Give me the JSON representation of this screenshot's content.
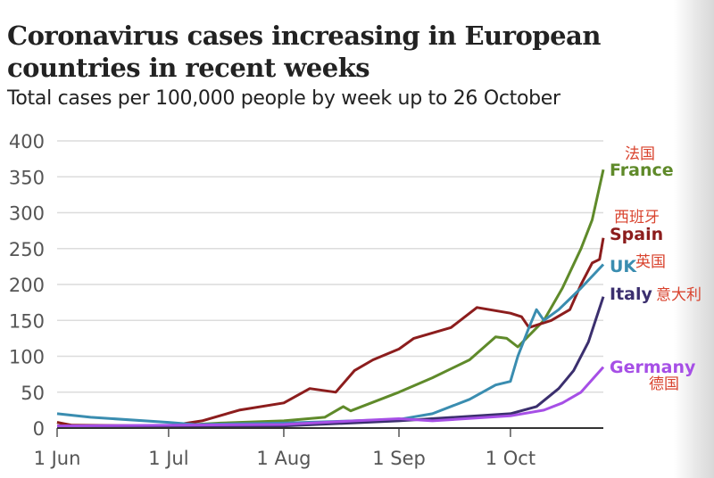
{
  "title": "Coronavirus cases increasing in European countries in recent weeks",
  "subtitle": "Total cases per 100,000 people by week up to 26 October",
  "chart_data": {
    "type": "line",
    "title": "Coronavirus cases increasing in European countries in recent weeks",
    "subtitle": "Total cases per 100,000 people by week up to 26 October",
    "xlabel": "",
    "ylabel": "",
    "xlim": [
      "2020-06-01",
      "2020-10-26"
    ],
    "ylim": [
      0,
      400
    ],
    "yticks": [
      0,
      50,
      100,
      150,
      200,
      250,
      300,
      350,
      400
    ],
    "xticks": [
      {
        "date": "2020-06-01",
        "label": "1 Jun"
      },
      {
        "date": "2020-07-01",
        "label": "1 Jul"
      },
      {
        "date": "2020-08-01",
        "label": "1 Aug"
      },
      {
        "date": "2020-09-01",
        "label": "1 Sep"
      },
      {
        "date": "2020-10-01",
        "label": "1 Oct"
      }
    ],
    "grid": true,
    "legend": "direct labels at line ends",
    "series": [
      {
        "name": "France",
        "label_cn": "法国",
        "color": "#5f8a2a",
        "points": [
          [
            "2020-06-01",
            8
          ],
          [
            "2020-06-05",
            3
          ],
          [
            "2020-07-01",
            3
          ],
          [
            "2020-07-15",
            7
          ],
          [
            "2020-08-01",
            10
          ],
          [
            "2020-08-12",
            15
          ],
          [
            "2020-08-17",
            30
          ],
          [
            "2020-08-19",
            24
          ],
          [
            "2020-09-01",
            50
          ],
          [
            "2020-09-10",
            70
          ],
          [
            "2020-09-20",
            95
          ],
          [
            "2020-09-27",
            127
          ],
          [
            "2020-09-30",
            125
          ],
          [
            "2020-10-03",
            113
          ],
          [
            "2020-10-10",
            150
          ],
          [
            "2020-10-15",
            195
          ],
          [
            "2020-10-20",
            250
          ],
          [
            "2020-10-23",
            290
          ],
          [
            "2020-10-26",
            360
          ]
        ]
      },
      {
        "name": "Spain",
        "label_cn": "西班牙",
        "color": "#8c1d1d",
        "points": [
          [
            "2020-06-01",
            8
          ],
          [
            "2020-06-05",
            4
          ],
          [
            "2020-07-01",
            3
          ],
          [
            "2020-07-10",
            10
          ],
          [
            "2020-07-20",
            25
          ],
          [
            "2020-08-01",
            35
          ],
          [
            "2020-08-08",
            55
          ],
          [
            "2020-08-15",
            50
          ],
          [
            "2020-08-20",
            80
          ],
          [
            "2020-08-25",
            95
          ],
          [
            "2020-09-01",
            110
          ],
          [
            "2020-09-05",
            125
          ],
          [
            "2020-09-15",
            140
          ],
          [
            "2020-09-22",
            168
          ],
          [
            "2020-10-01",
            160
          ],
          [
            "2020-10-04",
            155
          ],
          [
            "2020-10-06",
            140
          ],
          [
            "2020-10-12",
            150
          ],
          [
            "2020-10-17",
            165
          ],
          [
            "2020-10-20",
            200
          ],
          [
            "2020-10-23",
            230
          ],
          [
            "2020-10-25",
            235
          ],
          [
            "2020-10-26",
            265
          ]
        ]
      },
      {
        "name": "UK",
        "label_cn": "英国",
        "color": "#3a8db0",
        "points": [
          [
            "2020-06-01",
            20
          ],
          [
            "2020-06-10",
            15
          ],
          [
            "2020-07-01",
            8
          ],
          [
            "2020-07-08",
            5
          ],
          [
            "2020-08-01",
            7
          ],
          [
            "2020-09-01",
            12
          ],
          [
            "2020-09-10",
            20
          ],
          [
            "2020-09-20",
            40
          ],
          [
            "2020-09-27",
            60
          ],
          [
            "2020-10-01",
            65
          ],
          [
            "2020-10-03",
            100
          ],
          [
            "2020-10-06",
            140
          ],
          [
            "2020-10-08",
            165
          ],
          [
            "2020-10-10",
            150
          ],
          [
            "2020-10-14",
            165
          ],
          [
            "2020-10-20",
            195
          ],
          [
            "2020-10-26",
            228
          ]
        ]
      },
      {
        "name": "Italy",
        "label_cn": "意大利",
        "color": "#3b2f6e",
        "points": [
          [
            "2020-06-01",
            3
          ],
          [
            "2020-08-01",
            3
          ],
          [
            "2020-09-01",
            10
          ],
          [
            "2020-10-01",
            20
          ],
          [
            "2020-10-08",
            30
          ],
          [
            "2020-10-14",
            55
          ],
          [
            "2020-10-18",
            80
          ],
          [
            "2020-10-22",
            120
          ],
          [
            "2020-10-26",
            183
          ]
        ]
      },
      {
        "name": "Germany",
        "label_cn": "德国",
        "color": "#a64fe6",
        "points": [
          [
            "2020-06-01",
            3
          ],
          [
            "2020-08-01",
            5
          ],
          [
            "2020-08-20",
            10
          ],
          [
            "2020-09-01",
            13
          ],
          [
            "2020-09-10",
            10
          ],
          [
            "2020-10-01",
            17
          ],
          [
            "2020-10-10",
            25
          ],
          [
            "2020-10-15",
            35
          ],
          [
            "2020-10-20",
            50
          ],
          [
            "2020-10-26",
            85
          ]
        ]
      }
    ]
  }
}
